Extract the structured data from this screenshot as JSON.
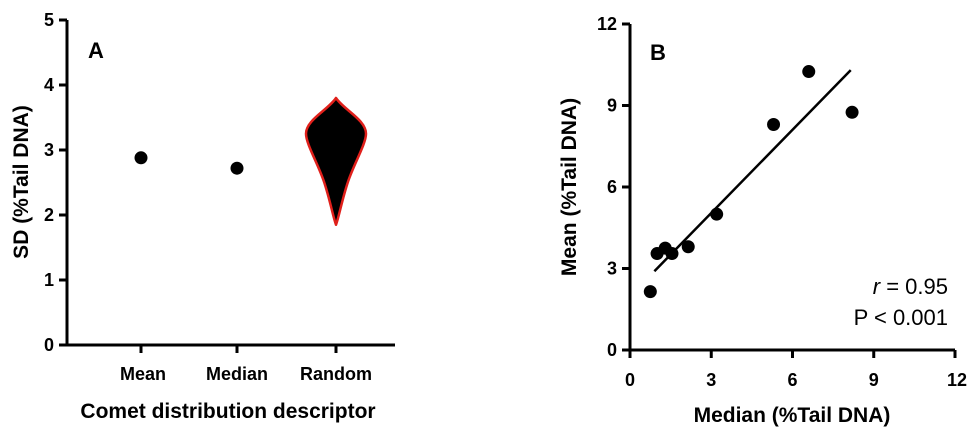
{
  "chart_data": [
    {
      "type": "scatter",
      "panel_label": "A",
      "xlabel": "Comet distribution descriptor",
      "ylabel": "SD (%Tail DNA)",
      "categories": [
        "Mean",
        "Median",
        "Random"
      ],
      "ylim": [
        0,
        5
      ],
      "yticks": [
        0,
        1,
        2,
        3,
        4,
        5
      ],
      "series": [
        {
          "values": [
            2.88,
            2.72,
            null
          ]
        }
      ],
      "violin": {
        "category": "Random",
        "min": 1.85,
        "max": 3.8,
        "widest_at": 3.25,
        "fill": "#000000",
        "outline": "#e0201b"
      }
    },
    {
      "type": "scatter",
      "panel_label": "B",
      "xlabel": "Median (%Tail DNA)",
      "ylabel": "Mean (%Tail DNA)",
      "xlim": [
        0,
        12
      ],
      "ylim": [
        0,
        12
      ],
      "xticks": [
        0,
        3,
        6,
        9,
        12
      ],
      "yticks": [
        0,
        3,
        6,
        9,
        12
      ],
      "points": [
        {
          "x": 0.75,
          "y": 2.15
        },
        {
          "x": 1.0,
          "y": 3.55
        },
        {
          "x": 1.3,
          "y": 3.75
        },
        {
          "x": 1.55,
          "y": 3.55
        },
        {
          "x": 2.15,
          "y": 3.8
        },
        {
          "x": 3.2,
          "y": 5.0
        },
        {
          "x": 5.3,
          "y": 8.3
        },
        {
          "x": 6.6,
          "y": 10.25
        },
        {
          "x": 8.2,
          "y": 8.75
        }
      ],
      "fit_line": {
        "x": [
          0.9,
          8.15
        ],
        "y": [
          2.9,
          10.3
        ]
      },
      "annotation": {
        "r_symbol": "r",
        "r_text": " = 0.95",
        "p_text": "P < 0.001"
      }
    }
  ]
}
